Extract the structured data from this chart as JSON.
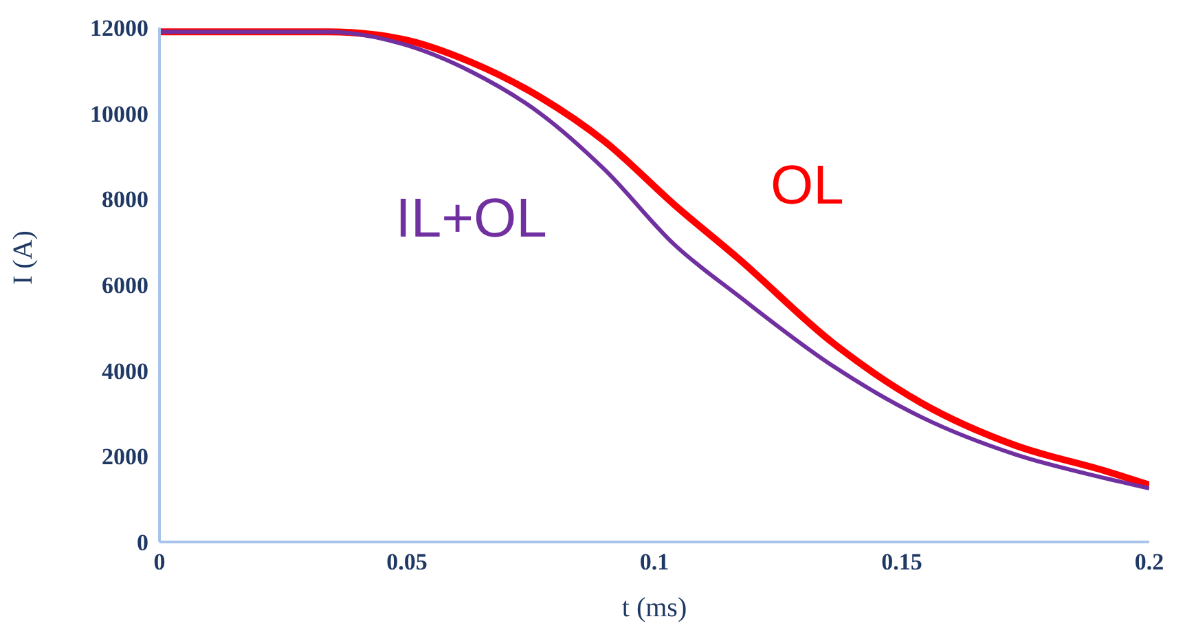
{
  "chart_data": {
    "type": "line",
    "xlabel": "t (ms)",
    "ylabel": "I (A)",
    "x": [
      0,
      0.034,
      0.049,
      0.063,
      0.077,
      0.09,
      0.104,
      0.117,
      0.136,
      0.154,
      0.173,
      0.191,
      0.2
    ],
    "series": [
      {
        "name": "OL",
        "color": "#ff0000",
        "values": [
          11900,
          11900,
          11730,
          11190,
          10370,
          9340,
          7870,
          6610,
          4650,
          3240,
          2250,
          1660,
          1330
        ]
      },
      {
        "name": "IL+OL",
        "color": "#7030a0",
        "values": [
          11900,
          11900,
          11620,
          10970,
          9990,
          8680,
          6940,
          5740,
          4110,
          2910,
          2040,
          1490,
          1250
        ]
      }
    ],
    "xlim": [
      0,
      0.2
    ],
    "xticks": [
      0,
      0.05,
      0.1,
      0.15,
      0.2
    ],
    "ylim": [
      0,
      12000
    ],
    "yticks": [
      0,
      2000,
      4000,
      6000,
      8000,
      10000,
      12000
    ],
    "grid": false,
    "legend": false,
    "marker": "none",
    "line_style": "solid"
  }
}
